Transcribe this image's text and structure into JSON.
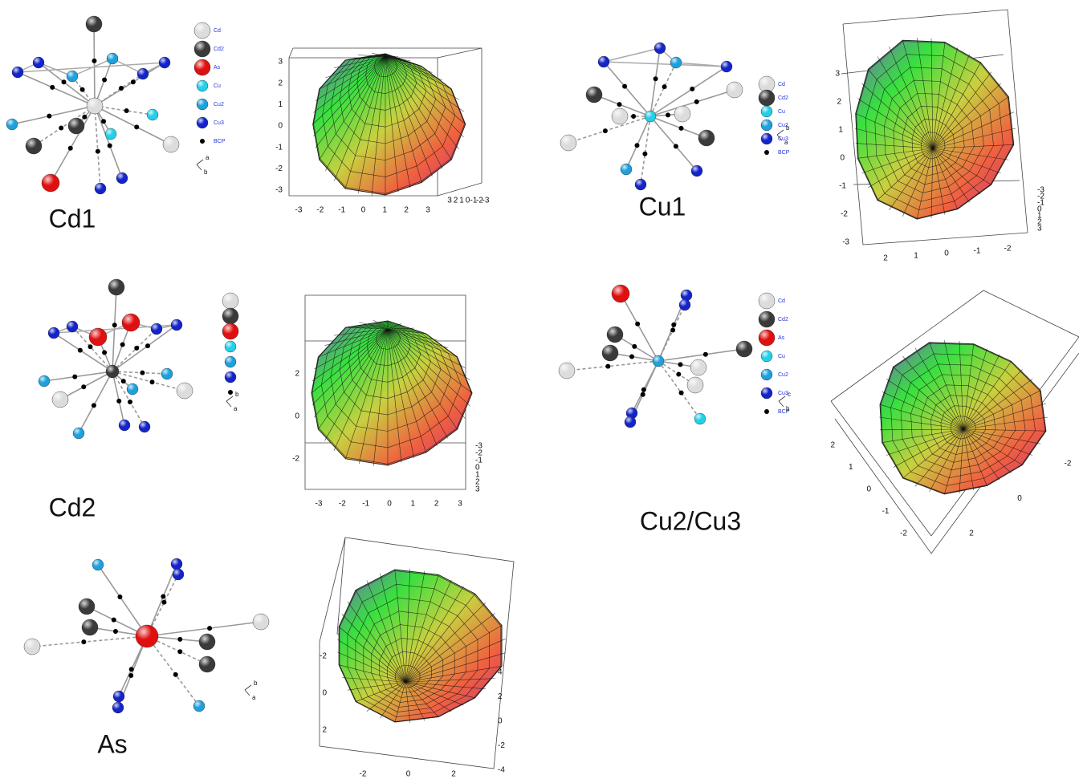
{
  "panels": [
    {
      "label": "Cd1",
      "legend": [
        "Cd",
        "Cd2",
        "As",
        "Cu",
        "Cu2",
        "Cu3",
        "BCP"
      ],
      "orientation": [
        "a",
        "b"
      ],
      "plot": {
        "left_ticks": [
          "3",
          "2",
          "1",
          "0",
          "-1",
          "-2",
          "-3"
        ],
        "bottom_ticks": [
          "-3",
          "-2",
          "-1",
          "0",
          "1",
          "2",
          "3"
        ],
        "side_ticks": [
          "3",
          "2",
          "1",
          "0",
          "-1",
          "-2",
          "-3"
        ]
      }
    },
    {
      "label": "Cu1",
      "legend": [
        "Cd",
        "Cd2",
        "Cu",
        "Cu2",
        "Cu3",
        "BCP"
      ],
      "orientation": [
        "b",
        "a"
      ],
      "plot": {
        "left_ticks": [
          "3",
          "2",
          "1",
          "0",
          "-1",
          "-2",
          "-3"
        ],
        "bottom_ticks": [
          "2",
          "1",
          "0",
          "-1",
          "-2"
        ],
        "side_ticks": [
          "-3",
          "-2",
          "-1",
          "0",
          "1",
          "2",
          "3"
        ]
      }
    },
    {
      "label": "Cd2",
      "legend": [],
      "orientation": [
        "b",
        "a"
      ],
      "plot": {
        "left_ticks": [
          "2",
          "0",
          "-2"
        ],
        "bottom_ticks": [
          "-3",
          "-2",
          "-1",
          "0",
          "1",
          "2",
          "3"
        ],
        "side_ticks": [
          "-3",
          "-2",
          "-1",
          "0",
          "1",
          "2",
          "3"
        ]
      }
    },
    {
      "label": "Cu2/Cu3",
      "legend": [
        "Cd",
        "Cd2",
        "As",
        "Cu",
        "Cu2",
        "Cu3",
        "BCP"
      ],
      "orientation": [
        "c",
        "b"
      ],
      "plot": {
        "left_ticks": [
          "2",
          "1",
          "0",
          "-1",
          "-2"
        ],
        "bottom_ticks": [
          "2",
          "0",
          "-2"
        ],
        "side_ticks": []
      }
    },
    {
      "label": "As",
      "legend": [],
      "orientation": [
        "b",
        "a"
      ],
      "plot": {
        "left_ticks": [
          "-2",
          "0",
          "2"
        ],
        "bottom_ticks": [
          "-2",
          "0",
          "2"
        ],
        "side_ticks": [
          "4",
          "2",
          "0",
          "-2",
          "-4"
        ]
      }
    }
  ]
}
